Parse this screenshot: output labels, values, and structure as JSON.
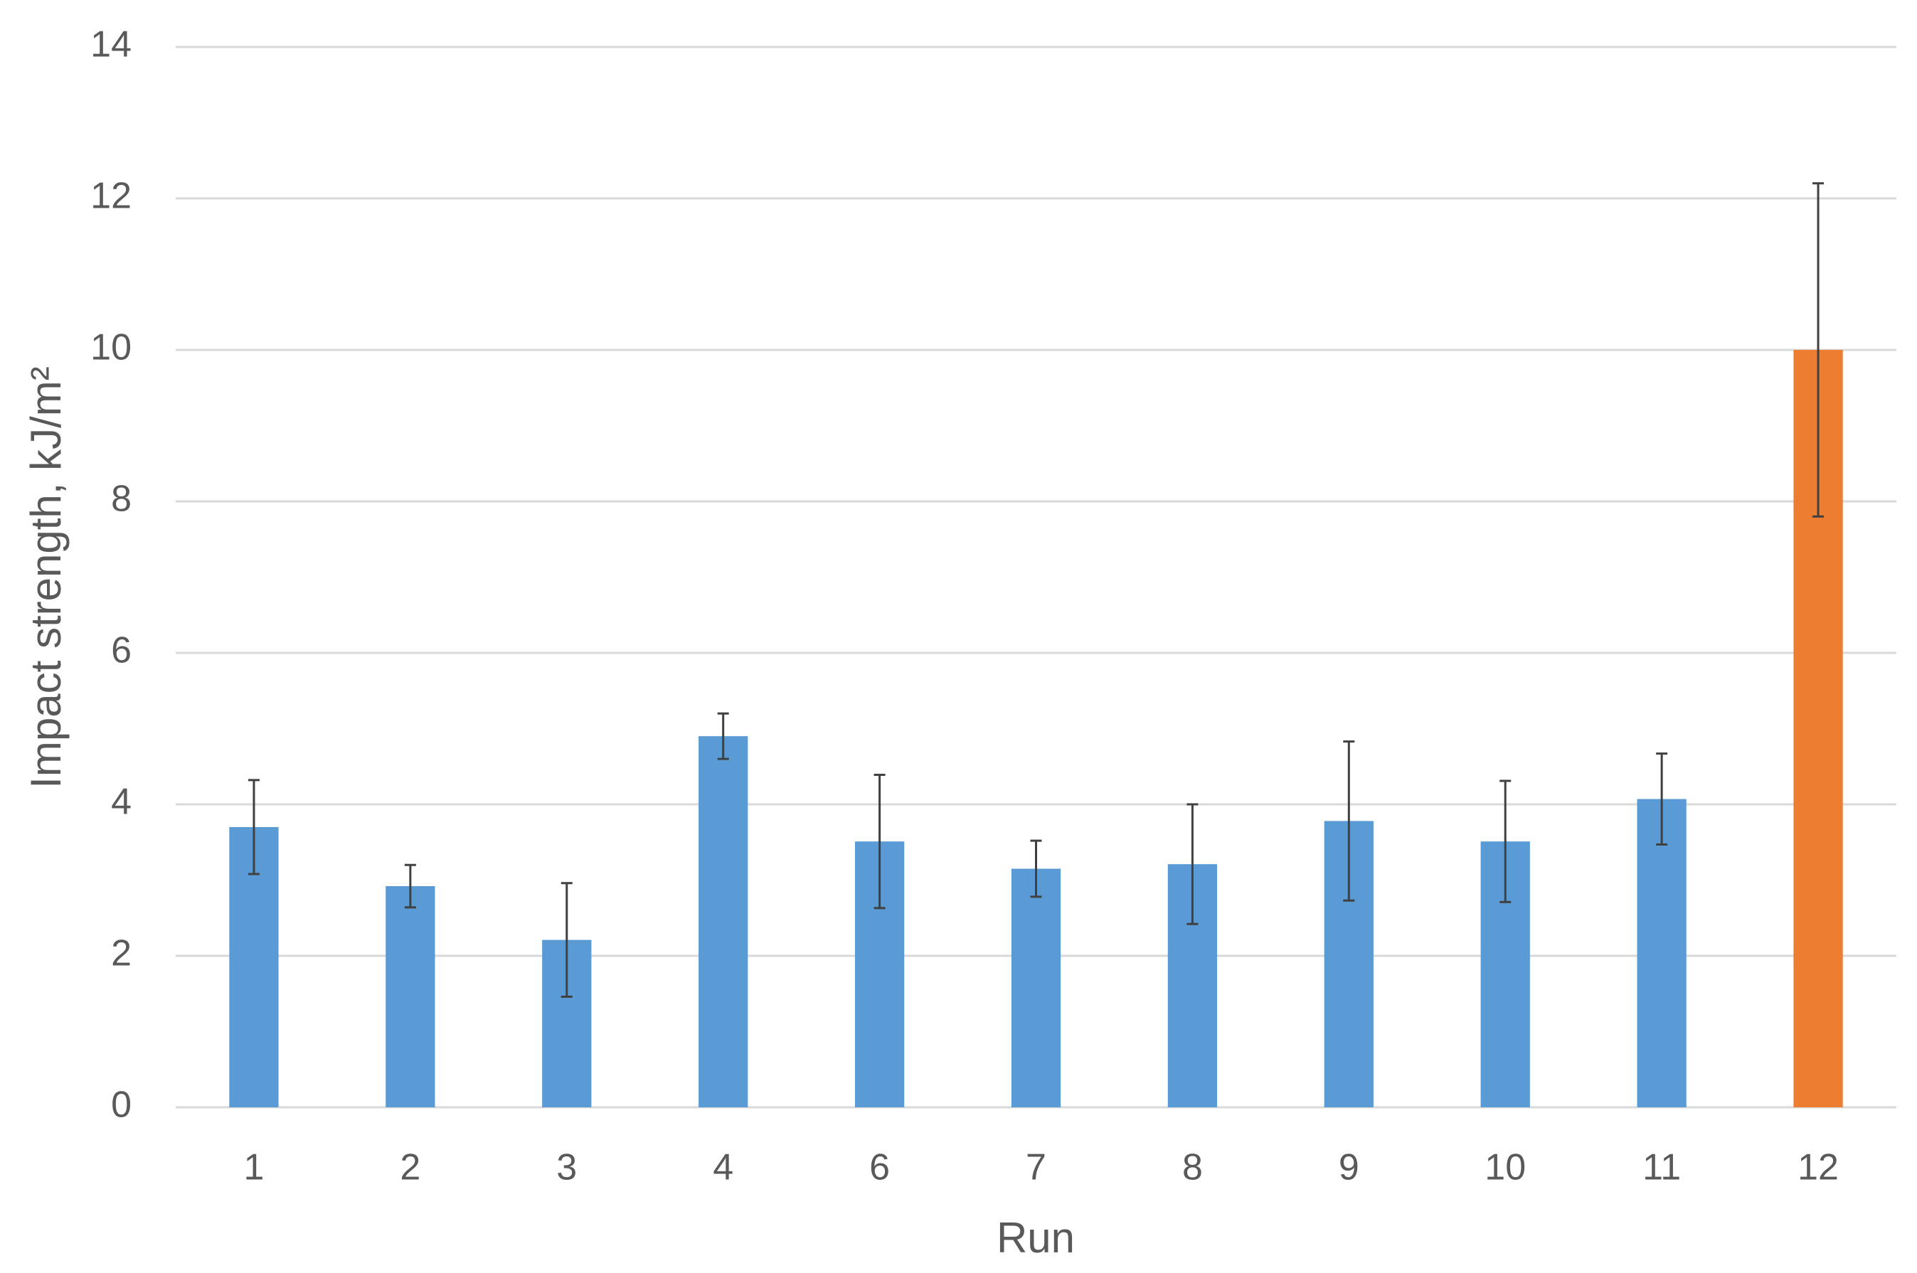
{
  "chart_data": {
    "type": "bar",
    "x_label": "Run",
    "y_label": "Impact strength, kJ/m²",
    "categories": [
      "1",
      "2",
      "3",
      "4",
      "6",
      "7",
      "8",
      "9",
      "10",
      "11",
      "12"
    ],
    "values": [
      3.7,
      2.92,
      2.21,
      4.9,
      3.51,
      3.15,
      3.21,
      3.78,
      3.51,
      4.07,
      10.0
    ],
    "errors": [
      0.62,
      0.28,
      0.75,
      0.3,
      0.88,
      0.37,
      0.79,
      1.05,
      0.8,
      0.6,
      2.2
    ],
    "colors": [
      "#5b9bd5",
      "#5b9bd5",
      "#5b9bd5",
      "#5b9bd5",
      "#5b9bd5",
      "#5b9bd5",
      "#5b9bd5",
      "#5b9bd5",
      "#5b9bd5",
      "#5b9bd5",
      "#ed7d31"
    ],
    "ylim": [
      0,
      14
    ],
    "yticks": [
      0,
      2,
      4,
      6,
      8,
      10,
      12,
      14
    ],
    "grid": true
  }
}
